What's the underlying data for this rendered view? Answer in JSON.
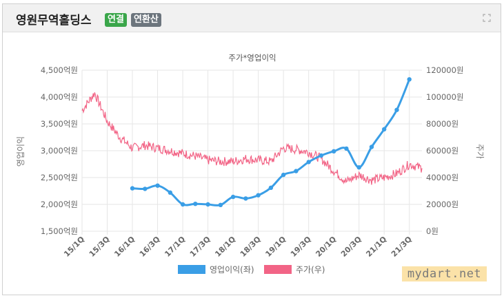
{
  "header": {
    "title": "영원무역홀딩스",
    "badge_consolidated": "연결",
    "badge_annualized": "연환산"
  },
  "watermark": "mydart.net",
  "colors": {
    "operating_profit": "#3a9ee6",
    "stock_price": "#f26486",
    "header_bg": "#f1f1f1",
    "badge_green": "#3aa64a",
    "badge_gray": "#6c757d"
  },
  "chart_data": {
    "type": "line",
    "title": "주가*영업이익",
    "ylabel": "영업이익",
    "y2label": "주가",
    "legend_position": "bottom",
    "grid": true,
    "x_ticks": [
      "15/1Q",
      "15/3Q",
      "16/1Q",
      "16/3Q",
      "17/1Q",
      "17/3Q",
      "18/1Q",
      "18/3Q",
      "19/1Q",
      "19/3Q",
      "20/1Q",
      "20/3Q",
      "21/1Q",
      "21/3Q"
    ],
    "y_ticks": [
      "4,500억원",
      "4,000억원",
      "3,500억원",
      "3,000억원",
      "2,500억원",
      "2,000억원",
      "1,500억원"
    ],
    "y2_ticks": [
      "120000원",
      "100000원",
      "80000원",
      "60000원",
      "40000원",
      "20000원",
      "0원"
    ],
    "ylim": [
      1500,
      4500
    ],
    "y2lim": [
      0,
      120000
    ],
    "series": [
      {
        "name": "영업이익(좌)",
        "axis": "left",
        "x": [
          "16/1Q",
          "16/2Q",
          "16/3Q",
          "16/4Q",
          "17/1Q",
          "17/2Q",
          "17/3Q",
          "17/4Q",
          "18/1Q",
          "18/2Q",
          "18/3Q",
          "18/4Q",
          "19/1Q",
          "19/2Q",
          "19/3Q",
          "19/4Q",
          "20/1Q",
          "20/2Q",
          "20/3Q",
          "20/4Q",
          "21/1Q",
          "21/2Q",
          "21/3Q"
        ],
        "values": [
          2300,
          2290,
          2350,
          2220,
          2000,
          2010,
          2000,
          1990,
          2140,
          2110,
          2170,
          2310,
          2550,
          2620,
          2790,
          2910,
          2990,
          3040,
          2690,
          3070,
          3400,
          3760,
          4330
        ]
      },
      {
        "name": "주가(우)",
        "axis": "right",
        "x": [
          "15/1Q",
          "15/2Q",
          "15/3Q",
          "15/4Q",
          "16/1Q",
          "16/2Q",
          "16/3Q",
          "16/4Q",
          "17/1Q",
          "17/2Q",
          "17/3Q",
          "17/4Q",
          "18/1Q",
          "18/2Q",
          "18/3Q",
          "18/4Q",
          "19/1Q",
          "19/2Q",
          "19/3Q",
          "19/4Q",
          "20/1Q",
          "20/2Q",
          "20/3Q",
          "20/4Q",
          "21/1Q",
          "21/2Q",
          "21/3Q",
          "21/4Q"
        ],
        "values": [
          90000,
          103000,
          82000,
          70000,
          62000,
          64000,
          62000,
          60000,
          58000,
          56000,
          53000,
          52000,
          52000,
          54000,
          53000,
          52000,
          62000,
          61000,
          59000,
          54000,
          45000,
          37000,
          42000,
          38000,
          40000,
          43000,
          50000,
          47000
        ]
      }
    ]
  }
}
